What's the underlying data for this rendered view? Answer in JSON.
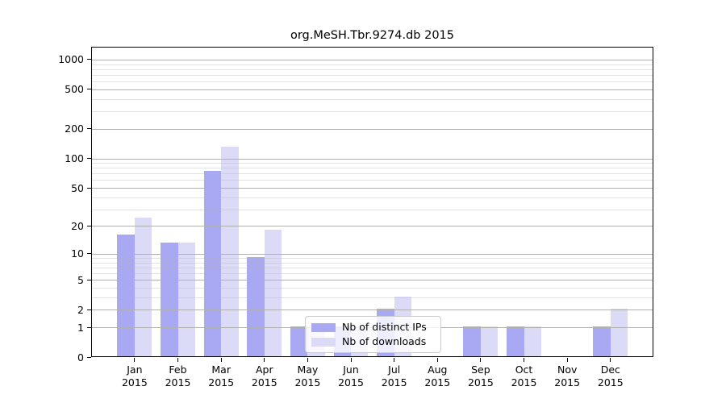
{
  "chart_data": {
    "type": "bar",
    "title": "org.MeSH.Tbr.9274.db 2015",
    "categories": [
      "Jan 2015",
      "Feb 2015",
      "Mar 2015",
      "Apr 2015",
      "May 2015",
      "Jun 2015",
      "Jul 2015",
      "Aug 2015",
      "Sep 2015",
      "Oct 2015",
      "Nov 2015",
      "Dec 2015"
    ],
    "series": [
      {
        "name": "Nb of distinct IPs",
        "color": "#a8a8f3",
        "values": [
          16,
          13,
          73,
          9,
          1,
          1,
          2,
          0,
          1,
          1,
          0,
          1
        ]
      },
      {
        "name": "Nb of downloads",
        "color": "#dbdbf8",
        "values": [
          24,
          13,
          130,
          18,
          1,
          1,
          3,
          0,
          1,
          1,
          0,
          2
        ]
      }
    ],
    "xlabel": "",
    "ylabel": "",
    "yscale": "log1p",
    "ylim": [
      0,
      1350
    ],
    "yticks": [
      0,
      1,
      2,
      5,
      10,
      20,
      50,
      100,
      200,
      500,
      1000
    ],
    "yminorticks": [
      3,
      4,
      6,
      7,
      8,
      9,
      30,
      40,
      60,
      70,
      80,
      90,
      300,
      400,
      600,
      700,
      800,
      900
    ],
    "grid": "horizontal major and minor",
    "legend_position": "lower center inside plot"
  }
}
